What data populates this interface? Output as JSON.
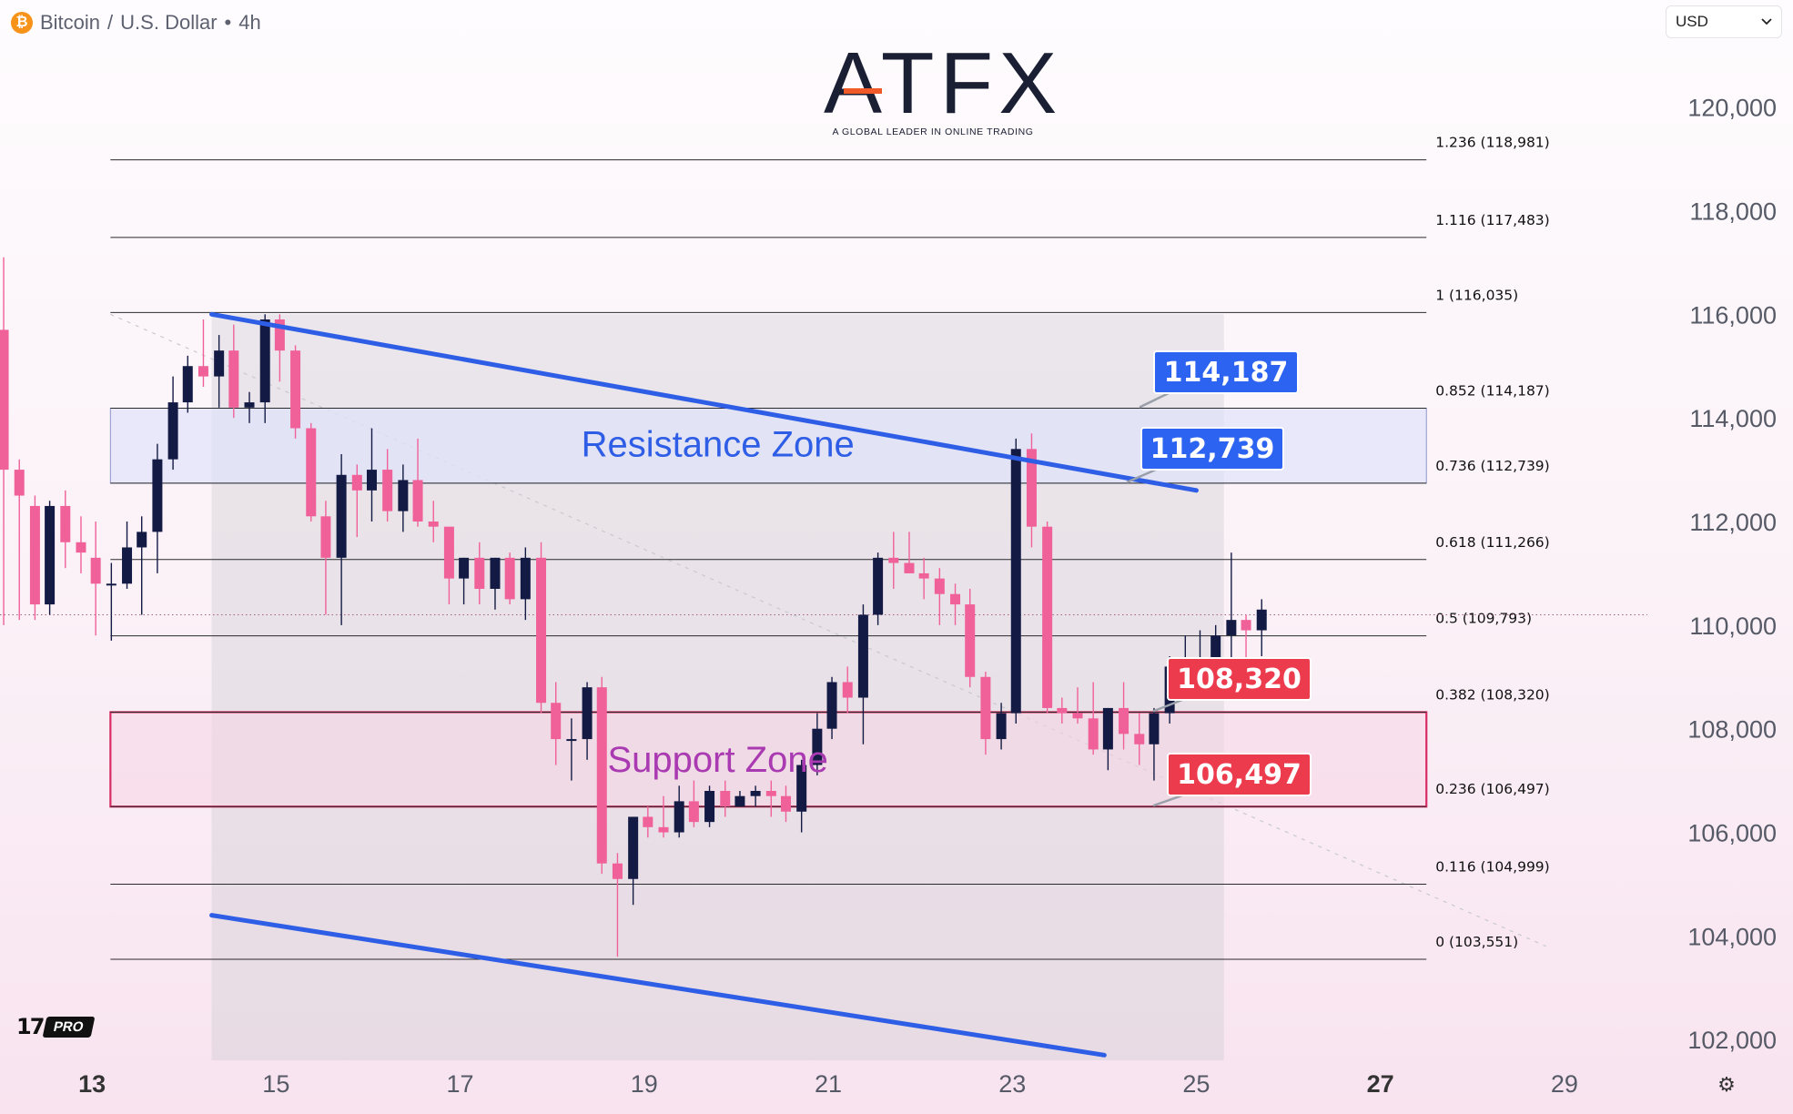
{
  "header": {
    "coin_glyph": "₿",
    "symbol": "Bitcoin",
    "separator": "/",
    "quote": "U.S. Dollar",
    "dot": "•",
    "timeframe": "4h"
  },
  "currency_select": {
    "value": "USD",
    "icon": "chevron-down-icon"
  },
  "logo": {
    "word": "ATFX",
    "tagline": "A GLOBAL LEADER IN ONLINE TRADING"
  },
  "tv_badge": {
    "mark": "17",
    "label": "PRO"
  },
  "colors": {
    "up": "#131b45",
    "down": "#f0619a",
    "trendline": "#2f5ee6",
    "resistance_fill": "#dfe3fb",
    "resistance_text": "#2f5ee6",
    "support_border": "#d72d64",
    "support_text": "#a93ab1",
    "tag_blue": "#2c63f0",
    "tag_red": "#ec3b4d"
  },
  "chart_data": {
    "type": "candlestick",
    "title": "Bitcoin / U.S. Dollar • 4h",
    "x_axis": {
      "unit": "day (July)",
      "range": [
        12,
        30
      ],
      "ticks": [
        {
          "value": 13,
          "label": "13",
          "bold": true
        },
        {
          "value": 15,
          "label": "15",
          "bold": false
        },
        {
          "value": 17,
          "label": "17",
          "bold": false
        },
        {
          "value": 19,
          "label": "19",
          "bold": false
        },
        {
          "value": 21,
          "label": "21",
          "bold": false
        },
        {
          "value": 23,
          "label": "23",
          "bold": false
        },
        {
          "value": 25,
          "label": "25",
          "bold": false
        },
        {
          "value": 27,
          "label": "27",
          "bold": true
        },
        {
          "value": 29,
          "label": "29",
          "bold": false
        }
      ]
    },
    "y_axis": {
      "range": [
        101600,
        121100
      ],
      "ticks": [
        {
          "value": 102000,
          "label": "102,000"
        },
        {
          "value": 104000,
          "label": "104,000"
        },
        {
          "value": 106000,
          "label": "106,000"
        },
        {
          "value": 108000,
          "label": "108,000"
        },
        {
          "value": 110000,
          "label": "110,000"
        },
        {
          "value": 112000,
          "label": "112,000"
        },
        {
          "value": 114000,
          "label": "114,000"
        },
        {
          "value": 116000,
          "label": "116,000"
        },
        {
          "value": 118000,
          "label": "118,000"
        },
        {
          "value": 120000,
          "label": "120,000"
        }
      ]
    },
    "candles": [
      {
        "t": 12.04,
        "o": 115.7,
        "h": 117.1,
        "l": 110.0,
        "c": 113.0
      },
      {
        "t": 12.21,
        "o": 113.0,
        "h": 113.2,
        "l": 110.1,
        "c": 112.5
      },
      {
        "t": 12.38,
        "o": 112.3,
        "h": 112.5,
        "l": 110.1,
        "c": 110.4
      },
      {
        "t": 12.54,
        "o": 110.4,
        "h": 112.4,
        "l": 110.2,
        "c": 112.3
      },
      {
        "t": 12.71,
        "o": 112.3,
        "h": 112.6,
        "l": 111.1,
        "c": 111.6
      },
      {
        "t": 12.88,
        "o": 111.6,
        "h": 112.1,
        "l": 111.0,
        "c": 111.4
      },
      {
        "t": 13.04,
        "o": 111.3,
        "h": 112.0,
        "l": 109.8,
        "c": 110.8
      },
      {
        "t": 13.21,
        "o": 110.8,
        "h": 111.2,
        "l": 109.7,
        "c": 110.8
      },
      {
        "t": 13.38,
        "o": 110.8,
        "h": 112.0,
        "l": 110.7,
        "c": 111.5
      },
      {
        "t": 13.54,
        "o": 111.5,
        "h": 112.1,
        "l": 110.2,
        "c": 111.8
      },
      {
        "t": 13.71,
        "o": 111.8,
        "h": 113.5,
        "l": 111.0,
        "c": 113.2
      },
      {
        "t": 13.88,
        "o": 113.2,
        "h": 114.8,
        "l": 113.0,
        "c": 114.3
      },
      {
        "t": 14.04,
        "o": 114.3,
        "h": 115.2,
        "l": 114.1,
        "c": 115.0
      },
      {
        "t": 14.21,
        "o": 115.0,
        "h": 115.9,
        "l": 114.6,
        "c": 114.8
      },
      {
        "t": 14.38,
        "o": 114.8,
        "h": 115.6,
        "l": 114.2,
        "c": 115.3
      },
      {
        "t": 14.54,
        "o": 115.3,
        "h": 115.8,
        "l": 114.0,
        "c": 114.2
      },
      {
        "t": 14.71,
        "o": 114.2,
        "h": 114.5,
        "l": 113.9,
        "c": 114.3
      },
      {
        "t": 14.88,
        "o": 114.3,
        "h": 116.0,
        "l": 113.9,
        "c": 115.9
      },
      {
        "t": 15.04,
        "o": 115.9,
        "h": 116.0,
        "l": 114.7,
        "c": 115.3
      },
      {
        "t": 15.21,
        "o": 115.3,
        "h": 115.4,
        "l": 113.6,
        "c": 113.8
      },
      {
        "t": 15.38,
        "o": 113.8,
        "h": 113.9,
        "l": 112.0,
        "c": 112.1
      },
      {
        "t": 15.54,
        "o": 112.1,
        "h": 112.4,
        "l": 110.2,
        "c": 111.3
      },
      {
        "t": 15.71,
        "o": 111.3,
        "h": 113.3,
        "l": 110.0,
        "c": 112.9
      },
      {
        "t": 15.88,
        "o": 112.9,
        "h": 113.1,
        "l": 111.7,
        "c": 112.6
      },
      {
        "t": 16.04,
        "o": 112.6,
        "h": 113.8,
        "l": 112.0,
        "c": 113.0
      },
      {
        "t": 16.21,
        "o": 113.0,
        "h": 113.4,
        "l": 112.0,
        "c": 112.2
      },
      {
        "t": 16.38,
        "o": 112.2,
        "h": 113.1,
        "l": 111.8,
        "c": 112.8
      },
      {
        "t": 16.54,
        "o": 112.8,
        "h": 113.6,
        "l": 111.9,
        "c": 112.0
      },
      {
        "t": 16.71,
        "o": 112.0,
        "h": 112.4,
        "l": 111.6,
        "c": 111.9
      },
      {
        "t": 16.88,
        "o": 111.9,
        "h": 111.9,
        "l": 110.4,
        "c": 110.9
      },
      {
        "t": 17.04,
        "o": 110.9,
        "h": 111.3,
        "l": 110.4,
        "c": 111.3
      },
      {
        "t": 17.21,
        "o": 111.3,
        "h": 111.6,
        "l": 110.4,
        "c": 110.7
      },
      {
        "t": 17.38,
        "o": 110.7,
        "h": 111.3,
        "l": 110.3,
        "c": 111.3
      },
      {
        "t": 17.54,
        "o": 111.3,
        "h": 111.4,
        "l": 110.4,
        "c": 110.5
      },
      {
        "t": 17.71,
        "o": 110.5,
        "h": 111.5,
        "l": 110.1,
        "c": 111.3
      },
      {
        "t": 17.88,
        "o": 111.3,
        "h": 111.6,
        "l": 108.3,
        "c": 108.5
      },
      {
        "t": 18.04,
        "o": 108.5,
        "h": 108.9,
        "l": 107.3,
        "c": 107.8
      },
      {
        "t": 18.21,
        "o": 107.8,
        "h": 108.2,
        "l": 107.0,
        "c": 107.8
      },
      {
        "t": 18.38,
        "o": 107.8,
        "h": 108.9,
        "l": 107.4,
        "c": 108.8
      },
      {
        "t": 18.54,
        "o": 108.8,
        "h": 109.0,
        "l": 105.2,
        "c": 105.4
      },
      {
        "t": 18.71,
        "o": 105.4,
        "h": 105.6,
        "l": 103.6,
        "c": 105.1
      },
      {
        "t": 18.88,
        "o": 105.1,
        "h": 106.3,
        "l": 104.6,
        "c": 106.3
      },
      {
        "t": 19.04,
        "o": 106.3,
        "h": 106.5,
        "l": 105.9,
        "c": 106.1
      },
      {
        "t": 19.21,
        "o": 106.1,
        "h": 106.7,
        "l": 105.9,
        "c": 106.0
      },
      {
        "t": 19.38,
        "o": 106.0,
        "h": 106.9,
        "l": 105.9,
        "c": 106.6
      },
      {
        "t": 19.54,
        "o": 106.6,
        "h": 107.0,
        "l": 106.1,
        "c": 106.2
      },
      {
        "t": 19.71,
        "o": 106.2,
        "h": 106.9,
        "l": 106.1,
        "c": 106.8
      },
      {
        "t": 19.88,
        "o": 106.8,
        "h": 107.0,
        "l": 106.3,
        "c": 106.5
      },
      {
        "t": 20.04,
        "o": 106.5,
        "h": 106.8,
        "l": 106.5,
        "c": 106.7
      },
      {
        "t": 20.21,
        "o": 106.7,
        "h": 106.9,
        "l": 106.5,
        "c": 106.8
      },
      {
        "t": 20.38,
        "o": 106.8,
        "h": 107.0,
        "l": 106.3,
        "c": 106.7
      },
      {
        "t": 20.54,
        "o": 106.7,
        "h": 106.9,
        "l": 106.2,
        "c": 106.4
      },
      {
        "t": 20.71,
        "o": 106.4,
        "h": 107.4,
        "l": 106.0,
        "c": 107.3
      },
      {
        "t": 20.88,
        "o": 107.3,
        "h": 108.3,
        "l": 107.1,
        "c": 108.0
      },
      {
        "t": 21.04,
        "o": 108.0,
        "h": 109.0,
        "l": 107.8,
        "c": 108.9
      },
      {
        "t": 21.21,
        "o": 108.9,
        "h": 109.2,
        "l": 108.3,
        "c": 108.6
      },
      {
        "t": 21.38,
        "o": 108.6,
        "h": 110.4,
        "l": 107.7,
        "c": 110.2
      },
      {
        "t": 21.54,
        "o": 110.2,
        "h": 111.4,
        "l": 110.0,
        "c": 111.3
      },
      {
        "t": 21.71,
        "o": 111.3,
        "h": 111.8,
        "l": 110.7,
        "c": 111.2
      },
      {
        "t": 21.88,
        "o": 111.2,
        "h": 111.8,
        "l": 111.0,
        "c": 111.0
      },
      {
        "t": 22.04,
        "o": 111.0,
        "h": 111.3,
        "l": 110.5,
        "c": 110.9
      },
      {
        "t": 22.21,
        "o": 110.9,
        "h": 111.1,
        "l": 110.0,
        "c": 110.6
      },
      {
        "t": 22.38,
        "o": 110.6,
        "h": 110.8,
        "l": 110.0,
        "c": 110.4
      },
      {
        "t": 22.54,
        "o": 110.4,
        "h": 110.7,
        "l": 108.8,
        "c": 109.0
      },
      {
        "t": 22.71,
        "o": 109.0,
        "h": 109.1,
        "l": 107.5,
        "c": 107.8
      },
      {
        "t": 22.88,
        "o": 107.8,
        "h": 108.5,
        "l": 107.6,
        "c": 108.3
      },
      {
        "t": 23.04,
        "o": 108.3,
        "h": 113.6,
        "l": 108.1,
        "c": 113.4
      },
      {
        "t": 23.21,
        "o": 113.4,
        "h": 113.7,
        "l": 111.5,
        "c": 111.9
      },
      {
        "t": 23.38,
        "o": 111.9,
        "h": 112.0,
        "l": 108.3,
        "c": 108.4
      },
      {
        "t": 23.54,
        "o": 108.4,
        "h": 108.6,
        "l": 108.1,
        "c": 108.3
      },
      {
        "t": 23.71,
        "o": 108.3,
        "h": 108.8,
        "l": 108.1,
        "c": 108.2
      },
      {
        "t": 23.88,
        "o": 108.2,
        "h": 108.9,
        "l": 107.5,
        "c": 107.6
      },
      {
        "t": 24.04,
        "o": 107.6,
        "h": 108.4,
        "l": 107.2,
        "c": 108.4
      },
      {
        "t": 24.21,
        "o": 108.4,
        "h": 108.9,
        "l": 107.6,
        "c": 107.9
      },
      {
        "t": 24.38,
        "o": 107.9,
        "h": 108.3,
        "l": 107.3,
        "c": 107.7
      },
      {
        "t": 24.54,
        "o": 107.7,
        "h": 108.4,
        "l": 107.0,
        "c": 108.3
      },
      {
        "t": 24.71,
        "o": 108.3,
        "h": 109.4,
        "l": 108.1,
        "c": 109.2
      },
      {
        "t": 24.88,
        "o": 109.2,
        "h": 109.8,
        "l": 108.7,
        "c": 109.3
      },
      {
        "t": 25.04,
        "o": 109.3,
        "h": 109.9,
        "l": 109.2,
        "c": 109.3
      },
      {
        "t": 25.21,
        "o": 109.3,
        "h": 110.0,
        "l": 108.8,
        "c": 109.8
      },
      {
        "t": 25.38,
        "o": 109.8,
        "h": 111.4,
        "l": 109.3,
        "c": 110.1
      },
      {
        "t": 25.54,
        "o": 110.1,
        "h": 110.2,
        "l": 109.3,
        "c": 109.9
      },
      {
        "t": 25.71,
        "o": 109.9,
        "h": 110.5,
        "l": 109.4,
        "c": 110.3
      }
    ],
    "candle_value_scale": 1000,
    "fibonacci_levels": [
      {
        "value": 118981,
        "label": "1.236 (118,981)"
      },
      {
        "value": 117483,
        "label": "1.116 (117,483)"
      },
      {
        "value": 116035,
        "label": "1 (116,035)"
      },
      {
        "value": 114187,
        "label": "0.852 (114,187)"
      },
      {
        "value": 112739,
        "label": "0.736 (112,739)"
      },
      {
        "value": 111266,
        "label": "0.618 (111,266)"
      },
      {
        "value": 109793,
        "label": "0.5 (109,793)"
      },
      {
        "value": 108320,
        "label": "0.382 (108,320)"
      },
      {
        "value": 106497,
        "label": "0.236 (106,497)"
      },
      {
        "value": 104999,
        "label": "0.116 (104,999)"
      },
      {
        "value": 103551,
        "label": "0 (103,551)"
      }
    ],
    "fib_range_x": [
      13.2,
      27.5
    ],
    "trendlines": [
      {
        "name": "upper channel",
        "from": [
          14.3,
          116000
        ],
        "to": [
          25.0,
          112600
        ]
      },
      {
        "name": "lower channel",
        "from": [
          14.3,
          104400
        ],
        "to": [
          24.0,
          101700
        ]
      }
    ],
    "zones": [
      {
        "label": "Resistance Zone",
        "from": 112739,
        "to": 114187
      },
      {
        "label": "Support Zone",
        "from": 106497,
        "to": 108320
      }
    ],
    "shaded_region": {
      "x": [
        14.3,
        25.3
      ],
      "y": [
        101600,
        116000
      ]
    },
    "price_tags": [
      {
        "value": "114,187",
        "color": "blue",
        "level": 114187
      },
      {
        "value": "112,739",
        "color": "blue",
        "level": 112739
      },
      {
        "value": "108,320",
        "color": "red",
        "level": 108320
      },
      {
        "value": "106,497",
        "color": "red",
        "level": 106497
      }
    ],
    "current_price": 110200
  }
}
